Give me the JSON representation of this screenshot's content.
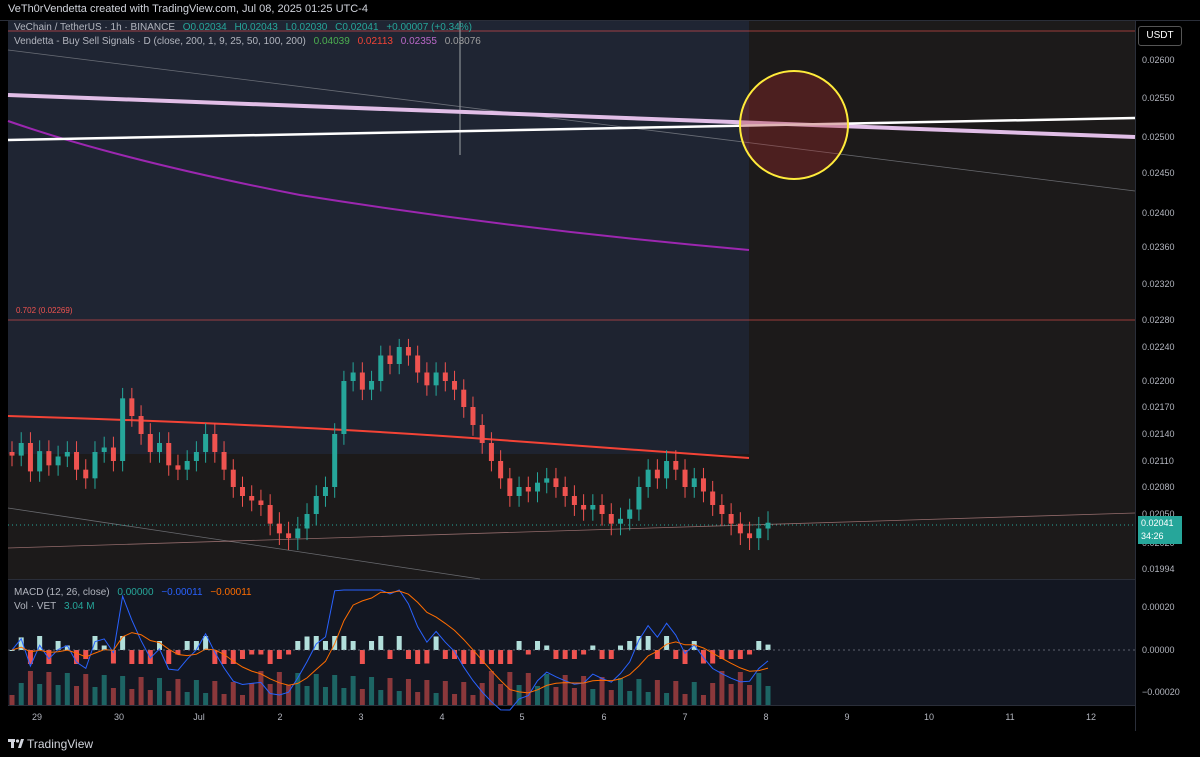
{
  "header": {
    "title": "VeTh0rVendetta created with TradingView.com, Jul 08, 2025 01:25 UTC-4"
  },
  "symbol_legend": {
    "name": "VeChain / TetherUS · 1h · BINANCE",
    "o": "O0.02034",
    "h": "H0.02043",
    "l": "L0.02030",
    "c": "C0.02041",
    "change": "+0.00007 (+0.34%)"
  },
  "indicator_legend": {
    "name": "Vendetta - Buy Sell Signals · D (close, 200, 1, 9, 25, 50, 100, 200)",
    "v1": "0.04039",
    "v2": "0.02113",
    "v3": "0.02355",
    "v4": "0.03076"
  },
  "fib_label": "0.702 (0.02269)",
  "currency_button": "USDT",
  "last_price": {
    "value": "0.02041",
    "countdown": "34:26"
  },
  "macd_legend": {
    "name": "MACD (12, 26, close)",
    "v1": "0.00000",
    "v2": "−0.00011",
    "v3": "−0.00011"
  },
  "vol_legend": {
    "name": "Vol · VET",
    "value": "3.04 M"
  },
  "footer_brand": "TradingView",
  "colors": {
    "up": "#26a69a",
    "down": "#ef5350",
    "ma_purple": "#9c27b0",
    "ma_red": "#f44336",
    "trendline_white": "#ffffff",
    "trendline_pink": "#e1bee7",
    "circle": "#ffeb3b",
    "macd_line": "#2962ff",
    "signal_line": "#ff6d00"
  },
  "chart_data": {
    "type": "candlestick",
    "y_axis_ticks": [
      "0.02600",
      "0.02550",
      "0.02500",
      "0.02450",
      "0.02400",
      "0.02360",
      "0.02320",
      "0.02280",
      "0.02240",
      "0.02200",
      "0.02170",
      "0.02140",
      "0.02110",
      "0.02080",
      "0.02050",
      "0.02020",
      "0.01994"
    ],
    "x_axis_ticks": [
      "29",
      "30",
      "Jul",
      "2",
      "3",
      "4",
      "5",
      "6",
      "7",
      "8",
      "9",
      "10",
      "11",
      "12"
    ],
    "macd_axis_ticks": [
      "0.00020",
      "0.00000",
      "−0.00020"
    ],
    "close_series": [
      0.02116,
      0.0213,
      0.02098,
      0.02121,
      0.02105,
      0.02115,
      0.0212,
      0.021,
      0.0209,
      0.0212,
      0.02125,
      0.0211,
      0.0218,
      0.0216,
      0.0214,
      0.0212,
      0.0213,
      0.02105,
      0.021,
      0.0211,
      0.0212,
      0.0214,
      0.0212,
      0.021,
      0.0208,
      0.0207,
      0.02065,
      0.0206,
      0.0204,
      0.0203,
      0.02025,
      0.02035,
      0.0205,
      0.0207,
      0.0208,
      0.0214,
      0.022,
      0.0221,
      0.0219,
      0.022,
      0.0223,
      0.0222,
      0.0224,
      0.0223,
      0.0221,
      0.02195,
      0.0221,
      0.022,
      0.0219,
      0.0217,
      0.0215,
      0.0213,
      0.0211,
      0.0209,
      0.0207,
      0.0208,
      0.02075,
      0.02085,
      0.0209,
      0.0208,
      0.0207,
      0.0206,
      0.02055,
      0.0206,
      0.0205,
      0.0204,
      0.02045,
      0.02055,
      0.0208,
      0.021,
      0.0209,
      0.0211,
      0.021,
      0.0208,
      0.0209,
      0.02075,
      0.0206,
      0.0205,
      0.0204,
      0.0203,
      0.02025,
      0.02035,
      0.02041
    ]
  }
}
